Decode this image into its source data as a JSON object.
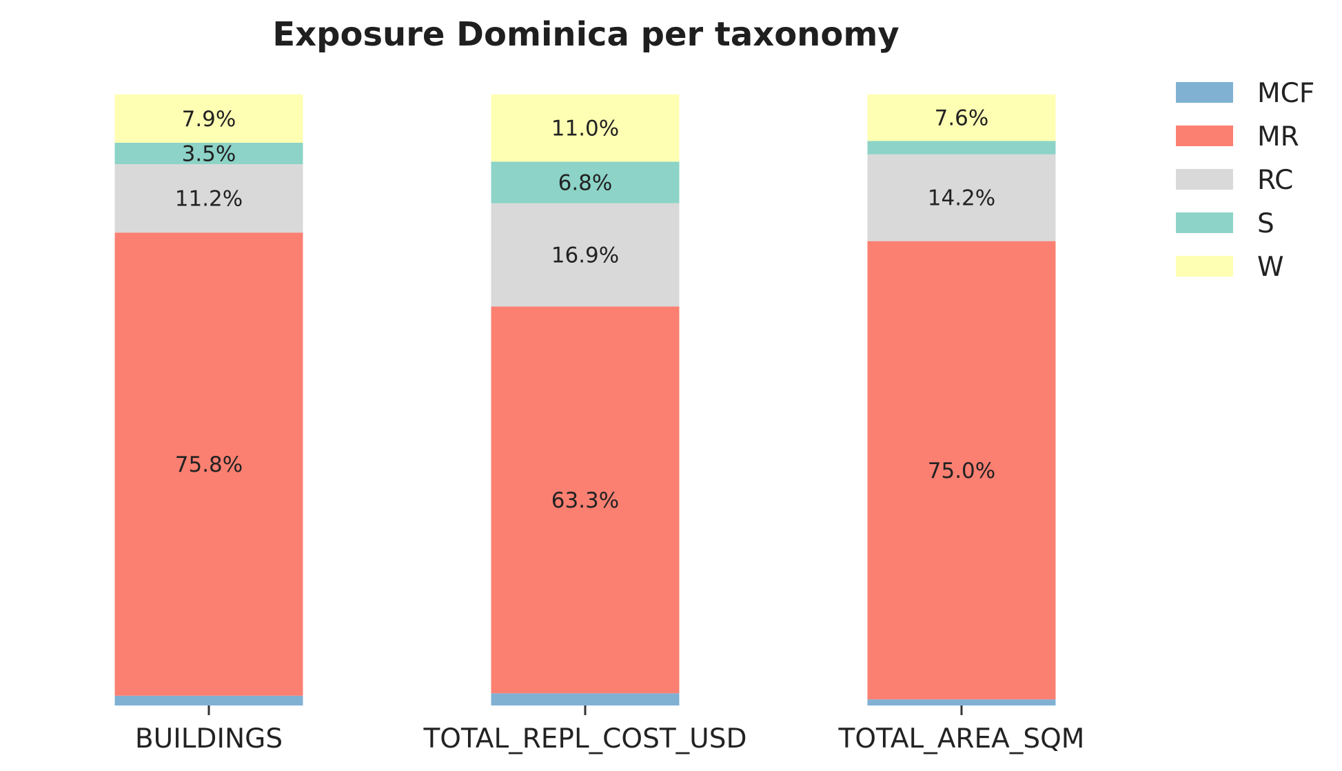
{
  "chart_data": {
    "type": "bar",
    "stacked": true,
    "normalized_percent": true,
    "title": "Exposure Dominica per taxonomy",
    "xlabel": "",
    "ylabel": "",
    "ylim": [
      0,
      100
    ],
    "grid": false,
    "legend_position": "top-right",
    "categories": [
      "BUILDINGS",
      "TOTAL_REPL_COST_USD",
      "TOTAL_AREA_SQM"
    ],
    "series": [
      {
        "name": "MCF",
        "color": "#80b1d3",
        "values": [
          1.6,
          2.0,
          1.0
        ],
        "labels": [
          "",
          "",
          ""
        ]
      },
      {
        "name": "MR",
        "color": "#fb8072",
        "values": [
          75.8,
          63.3,
          75.0
        ],
        "labels": [
          "75.8%",
          "63.3%",
          "75.0%"
        ]
      },
      {
        "name": "RC",
        "color": "#d9d9d9",
        "values": [
          11.2,
          16.9,
          14.2
        ],
        "labels": [
          "11.2%",
          "16.9%",
          "14.2%"
        ]
      },
      {
        "name": "S",
        "color": "#8dd3c7",
        "values": [
          3.5,
          6.8,
          2.2
        ],
        "labels": [
          "3.5%",
          "6.8%",
          ""
        ]
      },
      {
        "name": "W",
        "color": "#ffffb3",
        "values": [
          7.9,
          11.0,
          7.6
        ],
        "labels": [
          "7.9%",
          "11.0%",
          "7.6%"
        ]
      }
    ]
  }
}
